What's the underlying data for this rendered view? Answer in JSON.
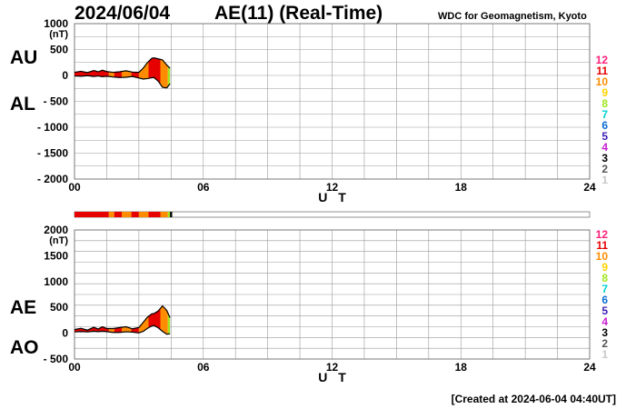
{
  "header": {
    "date": "2024/06/04",
    "title": "AE(11) (Real-Time)",
    "source": "WDC for Geomagnetism, Kyoto"
  },
  "footer": {
    "created": "[Created at 2024-06-04 04:40UT]"
  },
  "level_colors": [
    "#ff1e78",
    "#e60000",
    "#ff8c00",
    "#ffd200",
    "#a0e61e",
    "#00d2d2",
    "#0a6ed2",
    "#3c1eb4",
    "#c81ed2",
    "#000000",
    "#555555",
    "#c8c8c8"
  ],
  "activity_bar": [
    {
      "t0": 0.0,
      "t1": 1.6,
      "level": 11
    },
    {
      "t0": 1.6,
      "t1": 1.85,
      "level": 10
    },
    {
      "t0": 1.85,
      "t1": 2.2,
      "level": 11
    },
    {
      "t0": 2.2,
      "t1": 2.65,
      "level": 10
    },
    {
      "t0": 2.65,
      "t1": 3.0,
      "level": 11
    },
    {
      "t0": 3.0,
      "t1": 3.45,
      "level": 10
    },
    {
      "t0": 3.45,
      "t1": 4.0,
      "level": 11
    },
    {
      "t0": 4.0,
      "t1": 4.35,
      "level": 10
    },
    {
      "t0": 4.35,
      "t1": 4.45,
      "level": 8
    },
    {
      "t0": 4.45,
      "t1": 4.55,
      "level": 3
    }
  ],
  "chart_data": [
    {
      "type": "area",
      "side_labels": [
        "AU",
        "AL"
      ],
      "unit": "(nT)",
      "xlabel": "U T",
      "xlim": [
        0,
        24
      ],
      "ylim": [
        -2000,
        1000
      ],
      "yticks": [
        1000,
        500,
        0,
        -500,
        -1000,
        -1500,
        -2000
      ],
      "ytick_labels": [
        "1000",
        "500",
        "0",
        "- 500",
        "- 1000",
        "- 1500",
        "- 2000"
      ],
      "xticks": [
        0,
        6,
        12,
        18,
        24
      ],
      "xtick_labels": [
        "00",
        "06",
        "12",
        "18",
        "24"
      ],
      "grid": true,
      "levels": [
        "12",
        "11",
        "10",
        "9",
        "8",
        "7",
        "6",
        "5",
        "4",
        "3",
        "2",
        "1"
      ],
      "series": [
        {
          "name": "AU",
          "x": [
            0,
            0.3,
            0.6,
            0.9,
            1.1,
            1.3,
            1.5,
            1.8,
            2.1,
            2.4,
            2.7,
            3.0,
            3.2,
            3.4,
            3.6,
            3.7,
            3.9,
            4.1,
            4.3,
            4.45
          ],
          "y": [
            60,
            80,
            55,
            95,
            70,
            100,
            75,
            60,
            70,
            90,
            65,
            60,
            140,
            250,
            330,
            340,
            320,
            300,
            200,
            140
          ]
        },
        {
          "name": "AL",
          "x": [
            0,
            0.3,
            0.6,
            0.9,
            1.1,
            1.3,
            1.5,
            1.8,
            2.1,
            2.4,
            2.7,
            3.0,
            3.2,
            3.4,
            3.6,
            3.7,
            3.9,
            4.1,
            4.3,
            4.45
          ],
          "y": [
            -10,
            -15,
            -5,
            -20,
            -10,
            -25,
            -15,
            -30,
            -40,
            -35,
            -20,
            -50,
            -70,
            -60,
            -45,
            -40,
            -110,
            -230,
            -240,
            -160
          ]
        }
      ]
    },
    {
      "type": "area",
      "side_labels": [
        "AE",
        "AO"
      ],
      "unit": "(nT)",
      "xlabel": "U T",
      "xlim": [
        0,
        24
      ],
      "ylim": [
        -500,
        2000
      ],
      "yticks": [
        2000,
        1500,
        1000,
        500,
        0,
        -500
      ],
      "ytick_labels": [
        "2000",
        "1500",
        "1000",
        "500",
        "0",
        "- 500"
      ],
      "xticks": [
        0,
        6,
        12,
        18,
        24
      ],
      "xtick_labels": [
        "00",
        "06",
        "12",
        "18",
        "24"
      ],
      "grid": true,
      "levels": [
        "12",
        "11",
        "10",
        "9",
        "8",
        "7",
        "6",
        "5",
        "4",
        "3",
        "2",
        "1"
      ],
      "series": [
        {
          "name": "AE",
          "x": [
            0,
            0.3,
            0.6,
            0.9,
            1.1,
            1.3,
            1.5,
            1.8,
            2.1,
            2.4,
            2.7,
            3.0,
            3.2,
            3.4,
            3.6,
            3.7,
            3.9,
            4.1,
            4.3,
            4.45
          ],
          "y": [
            70,
            95,
            60,
            115,
            80,
            125,
            90,
            90,
            110,
            125,
            85,
            110,
            210,
            310,
            375,
            380,
            430,
            530,
            440,
            300
          ]
        },
        {
          "name": "AO",
          "x": [
            0,
            0.3,
            0.6,
            0.9,
            1.1,
            1.3,
            1.5,
            1.8,
            2.1,
            2.4,
            2.7,
            3.0,
            3.2,
            3.4,
            3.6,
            3.7,
            3.9,
            4.1,
            4.3,
            4.45
          ],
          "y": [
            25,
            32,
            25,
            37,
            30,
            37,
            30,
            15,
            15,
            27,
            22,
            5,
            35,
            95,
            140,
            150,
            105,
            35,
            -20,
            -10
          ]
        }
      ]
    }
  ]
}
